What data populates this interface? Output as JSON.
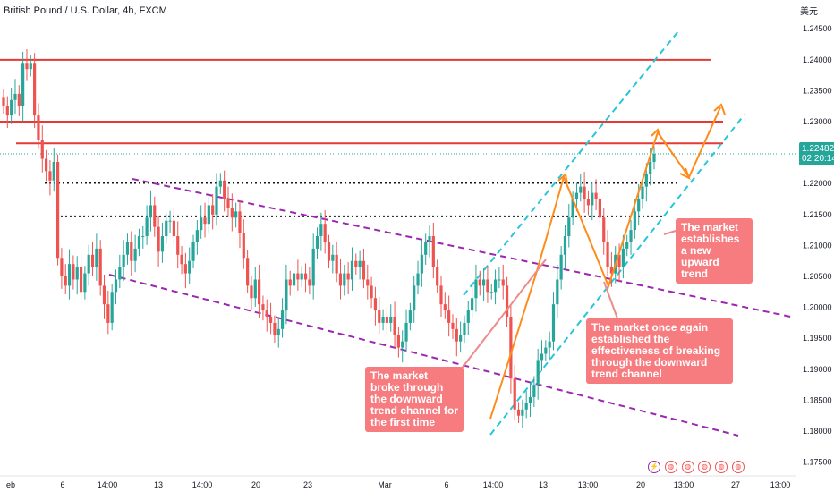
{
  "header": {
    "title": "British Pound / U.S. Dollar, 4h, FXCM",
    "currency": "美元"
  },
  "price_tag": {
    "last": "1.22482",
    "countdown": "02:20:14",
    "color": "#26a69a"
  },
  "chart_data": {
    "type": "candlestick",
    "title": "British Pound / U.S. Dollar, 4h, FXCM",
    "y_ticks": [
      "1.24500",
      "1.24000",
      "1.23500",
      "1.23000",
      "1.22500",
      "1.22000",
      "1.21500",
      "1.21000",
      "1.20500",
      "1.20000",
      "1.19500",
      "1.19000",
      "1.18500",
      "1.18000",
      "1.17500"
    ],
    "y_tick_values": [
      1.245,
      1.24,
      1.235,
      1.23,
      1.225,
      1.22,
      1.215,
      1.21,
      1.205,
      1.2,
      1.195,
      1.19,
      1.185,
      1.18,
      1.175
    ],
    "ylim": [
      1.1735,
      1.2485
    ],
    "x_ticks": [
      "eb",
      "6",
      "14:00",
      "13",
      "14:00",
      "20",
      "23",
      "Mar",
      "6",
      "14:00",
      "13",
      "13:00",
      "20",
      "13:00",
      "27",
      "13:00"
    ],
    "up_color": "#26a69a",
    "down_color": "#ef5350",
    "closes": [
      1.2325,
      1.231,
      1.2335,
      1.2345,
      1.2325,
      1.2395,
      1.2385,
      1.2395,
      1.231,
      1.227,
      1.224,
      1.222,
      1.2205,
      1.2235,
      1.208,
      1.205,
      1.2035,
      1.207,
      1.2045,
      1.2065,
      1.2025,
      1.2055,
      1.2085,
      1.2065,
      1.2095,
      1.2035,
      1.2005,
      1.1975,
      1.2025,
      1.2045,
      1.2065,
      1.2085,
      1.2105,
      1.2075,
      1.2095,
      1.2115,
      1.2115,
      1.2145,
      1.2165,
      1.213,
      1.209,
      1.2115,
      1.214,
      1.214,
      1.2115,
      1.2085,
      1.207,
      1.2055,
      1.2075,
      1.2105,
      1.2125,
      1.2145,
      1.2135,
      1.2165,
      1.215,
      1.2195,
      1.2205,
      1.2175,
      1.216,
      1.2145,
      1.2155,
      1.212,
      1.208,
      1.2035,
      1.2015,
      1.2045,
      1.2005,
      1.1995,
      1.1985,
      1.1975,
      1.1955,
      1.1965,
      1.1995,
      1.2045,
      1.2035,
      1.2055,
      1.2045,
      1.2055,
      1.2045,
      1.2035,
      1.2095,
      1.2115,
      1.2135,
      1.2105,
      1.2075,
      1.2085,
      1.2055,
      1.2035,
      1.2055,
      1.2045,
      1.2075,
      1.2065,
      1.2075,
      1.2045,
      1.2035,
      1.2015,
      1.1995,
      1.1975,
      1.1985,
      1.1975,
      1.1985,
      1.1955,
      1.1935,
      1.1945,
      1.1975,
      1.1995,
      1.2035,
      1.2055,
      1.2085,
      1.2105,
      1.2115,
      1.2065,
      1.2035,
      1.2005,
      1.1995,
      1.1975,
      1.1965,
      1.1945,
      1.1955,
      1.1975,
      1.1995,
      1.2015,
      1.2045,
      1.2035,
      1.2045,
      1.2025,
      1.2025,
      1.2045,
      1.2045,
      1.2035,
      1.1985,
      1.1885,
      1.1835,
      1.1825,
      1.1835,
      1.1845,
      1.1855,
      1.1875,
      1.1915,
      1.1925,
      1.1935,
      1.1945,
      1.2005,
      1.2045,
      1.2085,
      1.2115,
      1.2145,
      1.2175,
      1.2185,
      1.2195,
      1.2175,
      1.2165,
      1.2185,
      1.2175,
      1.2145,
      1.2105,
      1.2065,
      1.2055,
      1.2085,
      1.2065,
      1.2095,
      1.2105,
      1.2125,
      1.2155,
      1.2175,
      1.2195,
      1.2215,
      1.2235,
      1.2248
    ],
    "horizontal_levels": [
      1.24,
      1.23,
      1.2265
    ],
    "dotted_levels": [
      1.2201,
      1.2147
    ],
    "annotations": [
      "The market broke through the downward trend channel for the first time",
      "The market once again established the effectiveness of breaking through the downward trend channel",
      "The market establishes a new upward trend"
    ]
  },
  "callouts": {
    "first": "The market broke through the downward trend channel for the first time",
    "second": "The market once again established the effectiveness of breaking through the downward trend channel",
    "third": "The market establishes a new upward trend"
  }
}
